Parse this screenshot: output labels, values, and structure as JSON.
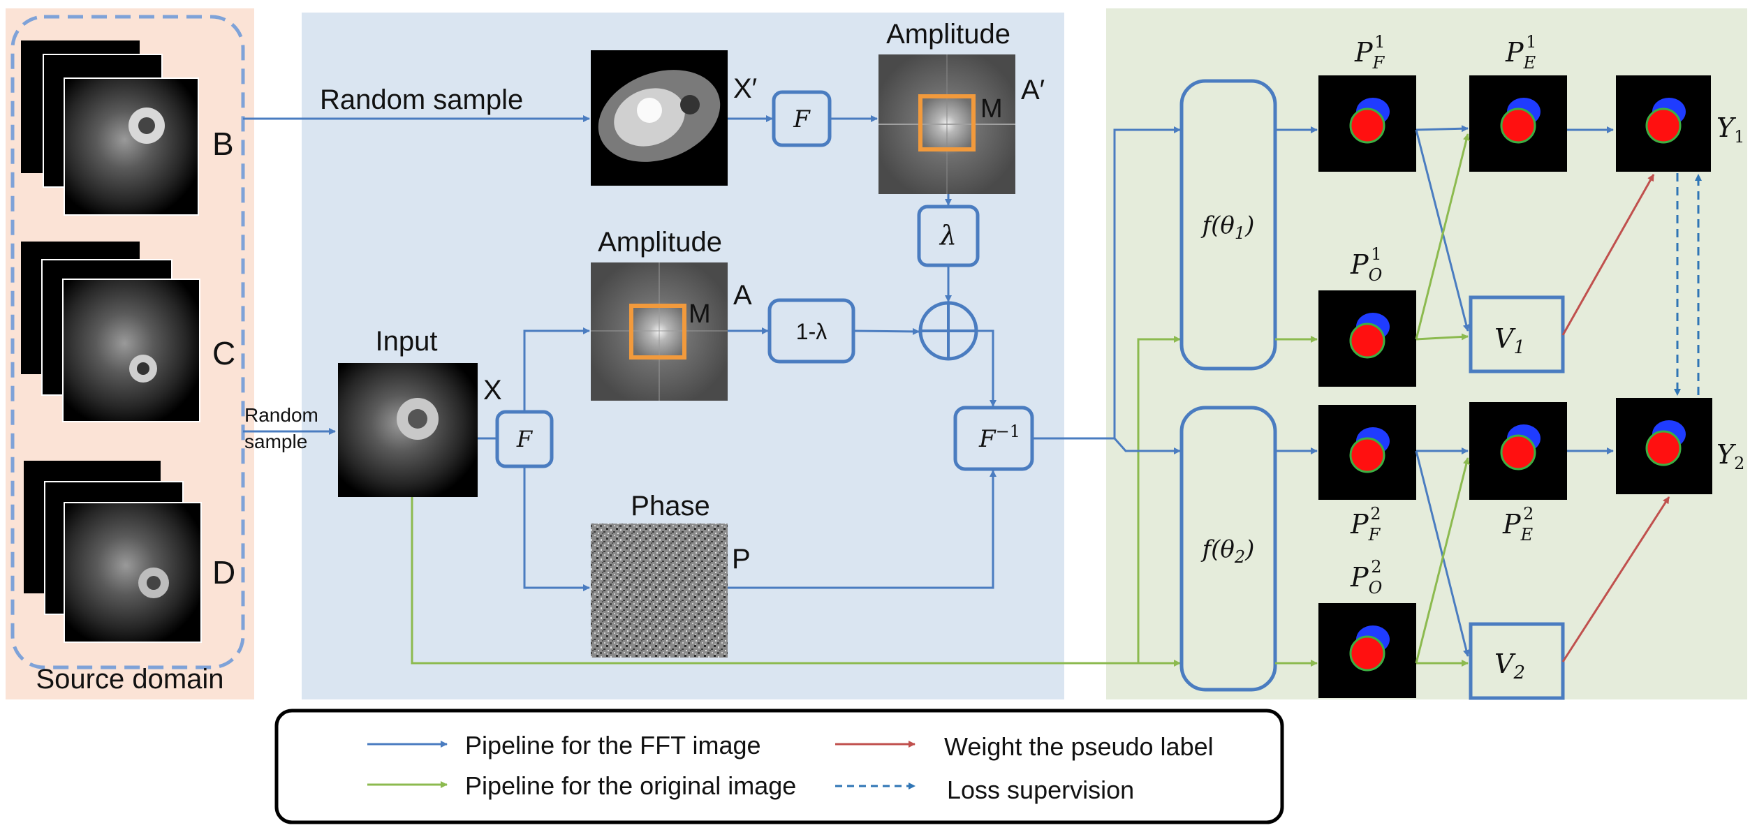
{
  "source": {
    "caption": "Source domain",
    "stacks": [
      {
        "label": "B"
      },
      {
        "label": "C"
      },
      {
        "label": "D"
      }
    ]
  },
  "fft": {
    "top": {
      "random_sample": "Random sample",
      "image_label": "X′",
      "fft_box": "F",
      "amp_title": "Amplitude",
      "amp_mask": "M",
      "amp_label": "A′",
      "lambda_box": "λ"
    },
    "mid": {
      "random_sample_line1": "Random",
      "random_sample_line2": "sample",
      "input_title": "Input",
      "input_label": "X",
      "fft_box": "F",
      "amp_title": "Amplitude",
      "amp_mask": "M",
      "amp_label": "A",
      "one_minus_lambda": "1-λ",
      "ifft_box": "F",
      "ifft_sup": "−1",
      "phase_title": "Phase",
      "phase_label": "P"
    }
  },
  "network": {
    "f1": {
      "base": "f(θ",
      "sub": "1",
      "close": ")"
    },
    "f2": {
      "base": "f(θ",
      "sub": "2",
      "close": ")"
    },
    "pf1": {
      "base": "P",
      "sub": "F",
      "sup": "1"
    },
    "pe1": {
      "base": "P",
      "sub": "E",
      "sup": "1"
    },
    "po1": {
      "base": "P",
      "sub": "O",
      "sup": "1"
    },
    "pf2": {
      "base": "P",
      "sub": "F",
      "sup": "2"
    },
    "pe2": {
      "base": "P",
      "sub": "E",
      "sup": "2"
    },
    "po2": {
      "base": "P",
      "sub": "O",
      "sup": "2"
    },
    "v1": {
      "base": "V",
      "sub": "1"
    },
    "v2": {
      "base": "V",
      "sub": "2"
    },
    "y1": {
      "base": "Y",
      "sub": "1"
    },
    "y2": {
      "base": "Y",
      "sub": "2"
    }
  },
  "legend": {
    "fft_pipeline": "Pipeline for the FFT  image",
    "orig_pipeline": "Pipeline for the original image",
    "weight": "Weight the pseudo label",
    "loss": "Loss supervision"
  },
  "colors": {
    "blue": "#4a7cc0",
    "green": "#8cba4f",
    "red": "#c0504d",
    "orange": "#f29a3c",
    "panel_source": "#fbe3d6",
    "panel_fft": "#dae5f1",
    "panel_net": "#e5ecdb",
    "seg_blue": "#1f3cff",
    "seg_red": "#ff1010",
    "seg_green": "#3cb043"
  }
}
